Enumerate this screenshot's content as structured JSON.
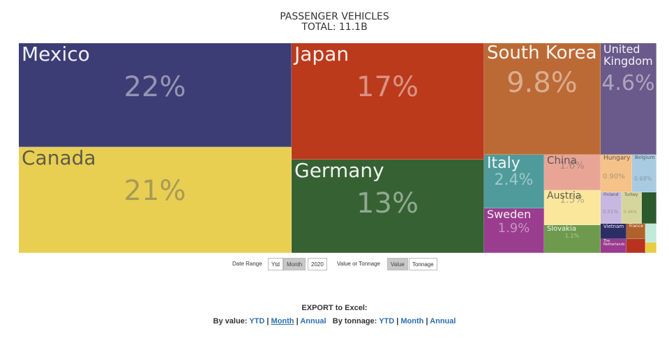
{
  "header": {
    "title": "PASSENGER VEHICLES",
    "total": "TOTAL: 11.1B"
  },
  "chart_data": {
    "type": "treemap",
    "title": "PASSENGER VEHICLES",
    "subtitle": "TOTAL: 11.1B",
    "items": [
      {
        "name": "Mexico",
        "label": "22%",
        "value": 22,
        "color": "#3d3d75"
      },
      {
        "name": "Canada",
        "label": "21%",
        "value": 21,
        "color": "#e8cf52"
      },
      {
        "name": "Japan",
        "label": "17%",
        "value": 17,
        "color": "#bb3a1c"
      },
      {
        "name": "Germany",
        "label": "13%",
        "value": 13,
        "color": "#366133"
      },
      {
        "name": "South Korea",
        "label": "9.8%",
        "value": 9.8,
        "color": "#bc6a35"
      },
      {
        "name": "United Kingdom",
        "label": "4.6%",
        "value": 4.6,
        "color": "#6a5a8b"
      },
      {
        "name": "Italy",
        "label": "2.4%",
        "value": 2.4,
        "color": "#4f9b9b"
      },
      {
        "name": "China",
        "label": "1.6%",
        "value": 1.6,
        "color": "#e8a596"
      },
      {
        "name": "Austria",
        "label": "1.5%",
        "value": 1.5,
        "color": "#fbe79c"
      },
      {
        "name": "Sweden",
        "label": "1.9%",
        "value": 1.9,
        "color": "#9a3d8f"
      },
      {
        "name": "Slovakia",
        "label": "1.1%",
        "value": 1.1,
        "color": "#6e9a4e"
      },
      {
        "name": "Hungary",
        "label": "0.90%",
        "value": 0.9,
        "color": "#f5c289"
      },
      {
        "name": "Belgium",
        "label": "0.68%",
        "value": 0.68,
        "color": "#a9cbe2"
      },
      {
        "name": "Finland",
        "label": "0.51%",
        "value": 0.51,
        "color": "#c6b8e0"
      },
      {
        "name": "Turkey",
        "label": "0.46%",
        "value": 0.46,
        "color": "#d6d69c"
      },
      {
        "name": "",
        "label": "",
        "value": 0.35,
        "color": "#2c5a2c"
      },
      {
        "name": "Vietnam",
        "label": "",
        "value": 0.3,
        "color": "#2d2d66"
      },
      {
        "name": "France",
        "label": "",
        "value": 0.2,
        "color": "#b0622b"
      },
      {
        "name": "",
        "label": "",
        "value": 0.15,
        "color": "#bfeada"
      },
      {
        "name": "The Netherlands",
        "label": "",
        "value": 0.15,
        "color": "#9b3a8f"
      },
      {
        "name": "",
        "label": "",
        "value": 0.12,
        "color": "#b83220"
      },
      {
        "name": "",
        "label": "",
        "value": 0.08,
        "color": "#e9cc45"
      }
    ]
  },
  "controls": {
    "date_range_label": "Date Range",
    "date_options": [
      "Ytd",
      "Month",
      "2020"
    ],
    "date_selected": "Month",
    "value_label": "Value or Tonnage",
    "value_options": [
      "Value",
      "Tonnage"
    ],
    "value_selected": "Value"
  },
  "export": {
    "title": "EXPORT to Excel:",
    "by_value_label": "By value:",
    "by_tonnage_label": "By tonnage:",
    "sep": "|",
    "links": [
      "YTD",
      "Month",
      "Annual"
    ]
  }
}
